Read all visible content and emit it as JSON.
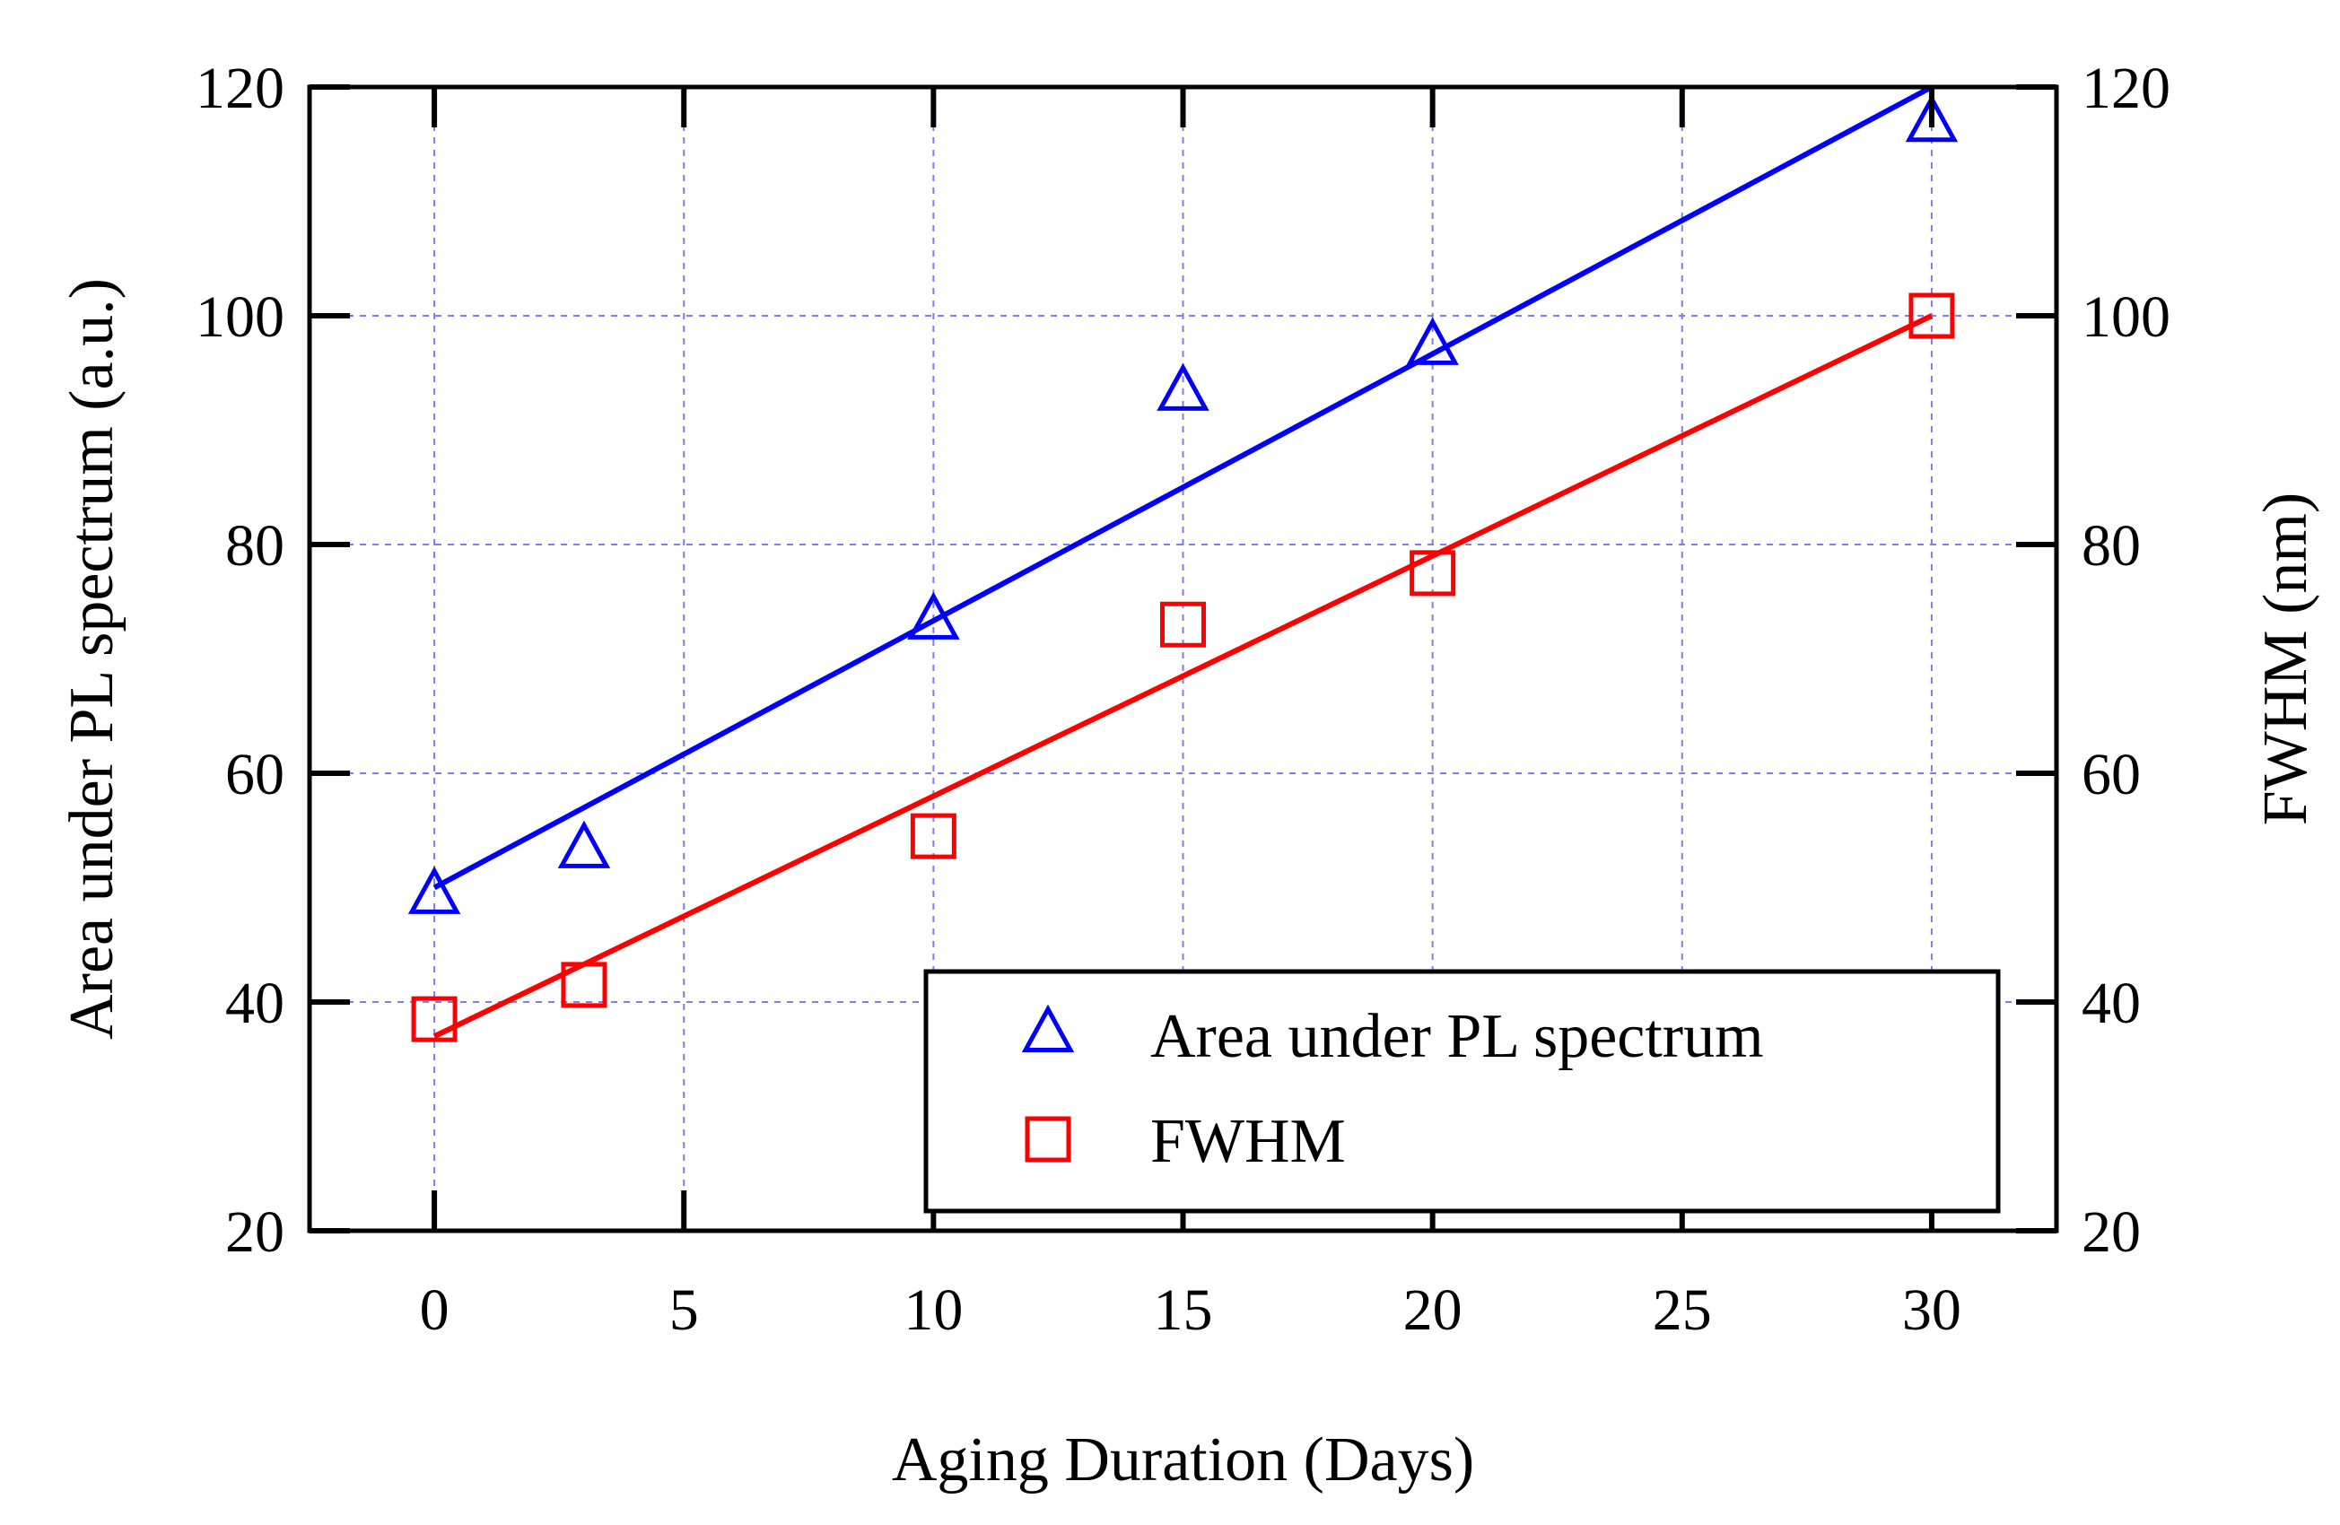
{
  "chart_data": {
    "type": "scatter",
    "title": "",
    "xlabel": "Aging Duration (Days)",
    "ylabel": "Area under PL spectrum (a.u.)",
    "y2label": "FWHM (nm)",
    "xlim": [
      -2.5,
      32.5
    ],
    "ylim": [
      20,
      120
    ],
    "y2lim": [
      20,
      120
    ],
    "xticks": [
      0,
      5,
      10,
      15,
      20,
      25,
      30
    ],
    "yticks": [
      20,
      40,
      60,
      80,
      100,
      120
    ],
    "y2ticks": [
      20,
      40,
      60,
      80,
      100,
      120
    ],
    "grid": true,
    "legend_position": "bottom-right",
    "series": [
      {
        "name": "Area under PL spectrum",
        "axis": "left",
        "marker": "triangle",
        "color": "#0000ff",
        "x": [
          0,
          3,
          10,
          15,
          20,
          30
        ],
        "y": [
          49.5,
          53.5,
          73.5,
          93.5,
          97.5,
          117
        ],
        "fit": {
          "x": [
            0,
            30
          ],
          "y": [
            50,
            120
          ]
        }
      },
      {
        "name": "FWHM",
        "axis": "right",
        "marker": "square",
        "color": "#ff0000",
        "x": [
          0,
          3,
          10,
          15,
          20,
          30
        ],
        "y": [
          38.5,
          41.5,
          54.5,
          73,
          77.5,
          100
        ],
        "fit": {
          "x": [
            0,
            30
          ],
          "y": [
            37,
            100
          ]
        }
      }
    ]
  }
}
